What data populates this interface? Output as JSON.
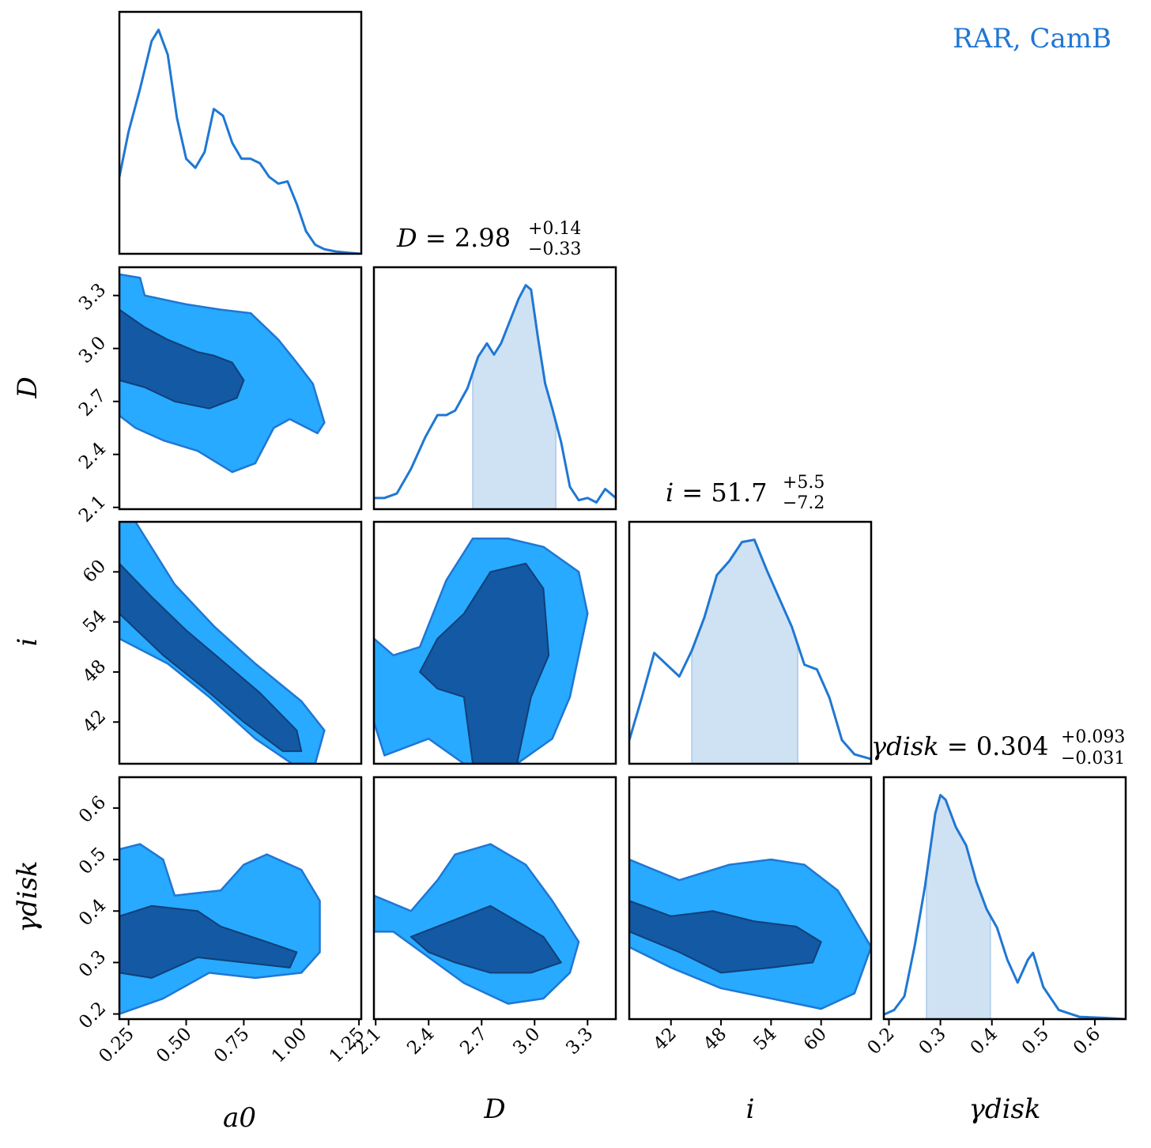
{
  "legend_label": "RAR, CamB",
  "colors": {
    "line": "#1f77d4",
    "fill_68": "#1459a3",
    "fill_95": "#27aaff",
    "band": "#cfe2f3",
    "frame": "#000000"
  },
  "titles": {
    "D": {
      "lhs": "D = ",
      "value": "2.98",
      "plus": "+0.14",
      "minus": "−0.33"
    },
    "i": {
      "lhs": "i = ",
      "value": "51.7",
      "plus": "+5.5",
      "minus": "−7.2"
    },
    "gamma": {
      "lhs": "γdisk = ",
      "value": "0.304",
      "plus": "+0.093",
      "minus": "−0.031"
    }
  },
  "axis_labels": {
    "x": [
      "a0",
      "D",
      "i",
      "γdisk"
    ],
    "y": [
      "D",
      "i",
      "γdisk"
    ]
  },
  "chart_data": {
    "type": "corner",
    "parameters": [
      "a0",
      "D",
      "i",
      "gamma_disk"
    ],
    "ranges": {
      "a0": [
        0.21,
        1.26
      ],
      "D": [
        2.09,
        3.46
      ],
      "i": [
        37.0,
        66.0
      ],
      "gamma_disk": [
        0.19,
        0.66
      ]
    },
    "ticks": {
      "a0": {
        "values": [
          0.25,
          0.5,
          0.75,
          1.0,
          1.25
        ],
        "labels": [
          "0.25",
          "0.50",
          "0.75",
          "1.00",
          "1.25"
        ]
      },
      "D": {
        "values": [
          2.1,
          2.4,
          2.7,
          3.0,
          3.3
        ],
        "labels": [
          "2.1",
          "2.4",
          "2.7",
          "3.0",
          "3.3"
        ]
      },
      "i": {
        "values": [
          42,
          48,
          54,
          60
        ],
        "labels": [
          "42",
          "48",
          "54",
          "60"
        ]
      },
      "gamma_disk": {
        "values": [
          0.2,
          0.3,
          0.4,
          0.5,
          0.6
        ],
        "labels": [
          "0.2",
          "0.3",
          "0.4",
          "0.5",
          "0.6"
        ]
      }
    },
    "marginals": {
      "a0": {
        "x": [
          0.21,
          0.25,
          0.3,
          0.35,
          0.38,
          0.42,
          0.46,
          0.5,
          0.54,
          0.58,
          0.62,
          0.66,
          0.7,
          0.74,
          0.78,
          0.82,
          0.86,
          0.9,
          0.94,
          0.98,
          1.02,
          1.06,
          1.1,
          1.15,
          1.2,
          1.26
        ],
        "y": [
          0.34,
          0.54,
          0.73,
          0.94,
          0.99,
          0.88,
          0.6,
          0.42,
          0.38,
          0.45,
          0.64,
          0.61,
          0.49,
          0.42,
          0.42,
          0.4,
          0.34,
          0.31,
          0.32,
          0.22,
          0.1,
          0.04,
          0.02,
          0.01,
          0.005,
          0.0
        ]
      },
      "D": {
        "x": [
          2.09,
          2.15,
          2.22,
          2.3,
          2.38,
          2.45,
          2.5,
          2.55,
          2.62,
          2.68,
          2.73,
          2.77,
          2.81,
          2.86,
          2.91,
          2.95,
          2.98,
          3.02,
          3.06,
          3.1,
          3.15,
          3.2,
          3.25,
          3.3,
          3.35,
          3.4,
          3.46
        ],
        "y": [
          0.05,
          0.05,
          0.07,
          0.18,
          0.32,
          0.42,
          0.42,
          0.44,
          0.54,
          0.68,
          0.74,
          0.69,
          0.74,
          0.84,
          0.94,
          1.0,
          0.98,
          0.76,
          0.56,
          0.45,
          0.3,
          0.1,
          0.04,
          0.05,
          0.03,
          0.09,
          0.05
        ]
      },
      "i": {
        "x": [
          37.0,
          38.5,
          40.0,
          41.5,
          43.0,
          44.5,
          46.0,
          47.5,
          49.0,
          50.5,
          52.0,
          53.5,
          55.0,
          56.5,
          58.0,
          59.5,
          61.0,
          62.5,
          64.0,
          66.0
        ],
        "y": [
          0.1,
          0.28,
          0.47,
          0.42,
          0.37,
          0.48,
          0.62,
          0.8,
          0.86,
          0.94,
          0.95,
          0.82,
          0.7,
          0.58,
          0.42,
          0.4,
          0.28,
          0.1,
          0.04,
          0.02
        ]
      },
      "gamma_disk": {
        "x": [
          0.19,
          0.21,
          0.23,
          0.25,
          0.27,
          0.29,
          0.3,
          0.31,
          0.33,
          0.35,
          0.37,
          0.39,
          0.41,
          0.43,
          0.45,
          0.47,
          0.48,
          0.5,
          0.53,
          0.57,
          0.62,
          0.66
        ],
        "y": [
          0.02,
          0.04,
          0.1,
          0.32,
          0.58,
          0.9,
          0.98,
          0.96,
          0.84,
          0.76,
          0.6,
          0.48,
          0.4,
          0.26,
          0.16,
          0.26,
          0.29,
          0.14,
          0.04,
          0.01,
          0.005,
          0.0
        ]
      }
    },
    "credible_intervals": {
      "D": [
        2.65,
        3.12
      ],
      "i": [
        44.5,
        57.2
      ],
      "gamma_disk": [
        0.273,
        0.397
      ]
    },
    "contour_panels": [
      {
        "x": "a0",
        "y": "D",
        "outer": [
          [
            0.21,
            3.42
          ],
          [
            0.3,
            3.4
          ],
          [
            0.32,
            3.3
          ],
          [
            0.5,
            3.25
          ],
          [
            0.65,
            3.22
          ],
          [
            0.78,
            3.2
          ],
          [
            0.9,
            3.05
          ],
          [
            0.98,
            2.92
          ],
          [
            1.05,
            2.8
          ],
          [
            1.1,
            2.58
          ],
          [
            1.07,
            2.52
          ],
          [
            0.95,
            2.6
          ],
          [
            0.88,
            2.55
          ],
          [
            0.8,
            2.35
          ],
          [
            0.7,
            2.3
          ],
          [
            0.55,
            2.42
          ],
          [
            0.4,
            2.48
          ],
          [
            0.28,
            2.55
          ],
          [
            0.21,
            2.62
          ]
        ],
        "inner": [
          [
            0.21,
            3.22
          ],
          [
            0.32,
            3.12
          ],
          [
            0.42,
            3.05
          ],
          [
            0.55,
            2.98
          ],
          [
            0.62,
            2.96
          ],
          [
            0.7,
            2.92
          ],
          [
            0.75,
            2.82
          ],
          [
            0.72,
            2.72
          ],
          [
            0.6,
            2.66
          ],
          [
            0.45,
            2.7
          ],
          [
            0.32,
            2.78
          ],
          [
            0.21,
            2.82
          ]
        ]
      },
      {
        "x": "a0",
        "y": "i",
        "outer": [
          [
            0.21,
            66.0
          ],
          [
            0.28,
            66.0
          ],
          [
            0.45,
            58.5
          ],
          [
            0.62,
            53.5
          ],
          [
            0.8,
            49.0
          ],
          [
            1.0,
            44.5
          ],
          [
            1.1,
            41.0
          ],
          [
            1.06,
            37.0
          ],
          [
            0.96,
            37.0
          ],
          [
            0.8,
            40.0
          ],
          [
            0.6,
            45.0
          ],
          [
            0.42,
            49.0
          ],
          [
            0.21,
            52.0
          ]
        ],
        "inner": [
          [
            0.21,
            61.0
          ],
          [
            0.35,
            57.0
          ],
          [
            0.5,
            53.0
          ],
          [
            0.65,
            49.5
          ],
          [
            0.82,
            45.5
          ],
          [
            0.98,
            41.0
          ],
          [
            1.0,
            38.5
          ],
          [
            0.92,
            38.5
          ],
          [
            0.75,
            42.0
          ],
          [
            0.58,
            46.0
          ],
          [
            0.4,
            50.0
          ],
          [
            0.21,
            55.0
          ]
        ]
      },
      {
        "x": "D",
        "y": "i",
        "outer": [
          [
            2.09,
            52.0
          ],
          [
            2.2,
            50.0
          ],
          [
            2.35,
            51.0
          ],
          [
            2.5,
            59.0
          ],
          [
            2.65,
            64.0
          ],
          [
            2.85,
            64.0
          ],
          [
            3.05,
            63.0
          ],
          [
            3.25,
            60.0
          ],
          [
            3.3,
            55.0
          ],
          [
            3.2,
            45.0
          ],
          [
            3.1,
            40.0
          ],
          [
            2.9,
            37.0
          ],
          [
            2.6,
            37.0
          ],
          [
            2.4,
            40.0
          ],
          [
            2.15,
            38.0
          ],
          [
            2.09,
            42.0
          ]
        ],
        "inner": [
          [
            2.35,
            48.0
          ],
          [
            2.45,
            52.0
          ],
          [
            2.6,
            55.0
          ],
          [
            2.75,
            60.0
          ],
          [
            2.95,
            61.0
          ],
          [
            3.05,
            58.0
          ],
          [
            3.08,
            50.0
          ],
          [
            2.98,
            45.0
          ],
          [
            2.9,
            37.0
          ],
          [
            2.65,
            37.0
          ],
          [
            2.6,
            45.0
          ],
          [
            2.45,
            46.0
          ]
        ]
      },
      {
        "x": "a0",
        "y": "gamma_disk",
        "outer": [
          [
            0.21,
            0.52
          ],
          [
            0.3,
            0.53
          ],
          [
            0.4,
            0.5
          ],
          [
            0.45,
            0.43
          ],
          [
            0.65,
            0.44
          ],
          [
            0.75,
            0.49
          ],
          [
            0.85,
            0.51
          ],
          [
            1.0,
            0.48
          ],
          [
            1.08,
            0.42
          ],
          [
            1.08,
            0.32
          ],
          [
            1.0,
            0.28
          ],
          [
            0.8,
            0.27
          ],
          [
            0.6,
            0.28
          ],
          [
            0.4,
            0.23
          ],
          [
            0.21,
            0.2
          ]
        ],
        "inner": [
          [
            0.21,
            0.39
          ],
          [
            0.35,
            0.41
          ],
          [
            0.55,
            0.4
          ],
          [
            0.65,
            0.37
          ],
          [
            0.85,
            0.34
          ],
          [
            0.98,
            0.32
          ],
          [
            0.95,
            0.29
          ],
          [
            0.75,
            0.3
          ],
          [
            0.55,
            0.31
          ],
          [
            0.35,
            0.27
          ],
          [
            0.21,
            0.28
          ]
        ]
      },
      {
        "x": "D",
        "y": "gamma_disk",
        "outer": [
          [
            2.09,
            0.43
          ],
          [
            2.3,
            0.4
          ],
          [
            2.45,
            0.46
          ],
          [
            2.55,
            0.51
          ],
          [
            2.75,
            0.53
          ],
          [
            2.95,
            0.49
          ],
          [
            3.1,
            0.42
          ],
          [
            3.25,
            0.34
          ],
          [
            3.2,
            0.28
          ],
          [
            3.05,
            0.23
          ],
          [
            2.85,
            0.22
          ],
          [
            2.6,
            0.26
          ],
          [
            2.4,
            0.31
          ],
          [
            2.2,
            0.36
          ],
          [
            2.09,
            0.36
          ]
        ],
        "inner": [
          [
            2.3,
            0.35
          ],
          [
            2.45,
            0.37
          ],
          [
            2.6,
            0.39
          ],
          [
            2.75,
            0.41
          ],
          [
            2.9,
            0.38
          ],
          [
            3.05,
            0.35
          ],
          [
            3.15,
            0.3
          ],
          [
            2.98,
            0.28
          ],
          [
            2.75,
            0.28
          ],
          [
            2.55,
            0.3
          ],
          [
            2.4,
            0.32
          ]
        ]
      },
      {
        "x": "i",
        "y": "gamma_disk",
        "outer": [
          [
            37.0,
            0.5
          ],
          [
            43.0,
            0.46
          ],
          [
            49.0,
            0.49
          ],
          [
            54.0,
            0.5
          ],
          [
            58.0,
            0.49
          ],
          [
            62.0,
            0.44
          ],
          [
            66.0,
            0.33
          ],
          [
            64.0,
            0.24
          ],
          [
            60.0,
            0.21
          ],
          [
            54.0,
            0.23
          ],
          [
            48.0,
            0.25
          ],
          [
            42.0,
            0.29
          ],
          [
            37.0,
            0.33
          ]
        ],
        "inner": [
          [
            37.0,
            0.42
          ],
          [
            42.0,
            0.39
          ],
          [
            47.0,
            0.4
          ],
          [
            52.0,
            0.38
          ],
          [
            57.0,
            0.37
          ],
          [
            60.0,
            0.34
          ],
          [
            59.0,
            0.3
          ],
          [
            54.0,
            0.29
          ],
          [
            48.0,
            0.28
          ],
          [
            43.0,
            0.32
          ],
          [
            37.0,
            0.36
          ]
        ]
      }
    ],
    "legend_position": "top-right",
    "grid": false
  }
}
